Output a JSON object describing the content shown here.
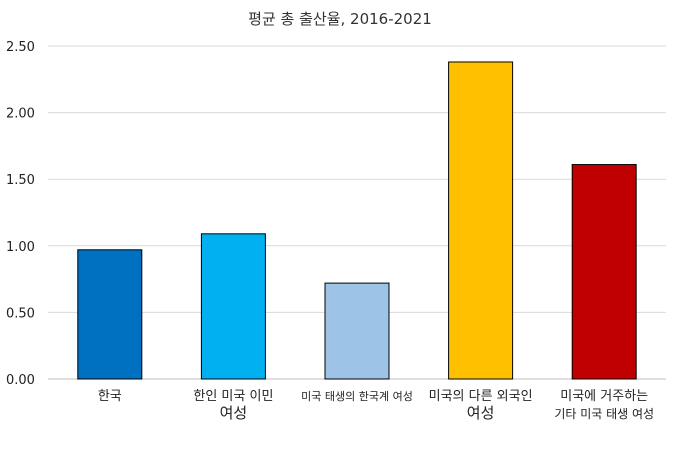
{
  "chart_data": {
    "type": "bar",
    "title": "평균 총 출산율, 2016-2021",
    "xlabel": "",
    "ylabel": "",
    "ylim": [
      0,
      2.5
    ],
    "yticks": [
      "0.00",
      "0.50",
      "1.00",
      "1.50",
      "2.00",
      "2.50"
    ],
    "grid": true,
    "categories": [
      [
        "한국"
      ],
      [
        "한인 미국 이민",
        "여성"
      ],
      [
        "미국 태생의 한국계 여성"
      ],
      [
        "미국의 다른 외국인",
        "여성"
      ],
      [
        "미국에 거주하는",
        "기타 미국 태생 여성"
      ]
    ],
    "values": [
      0.97,
      1.09,
      0.72,
      2.38,
      1.61
    ],
    "colors": [
      "#0070c0",
      "#00b0f0",
      "#9dc3e6",
      "#ffc000",
      "#c00000"
    ]
  }
}
